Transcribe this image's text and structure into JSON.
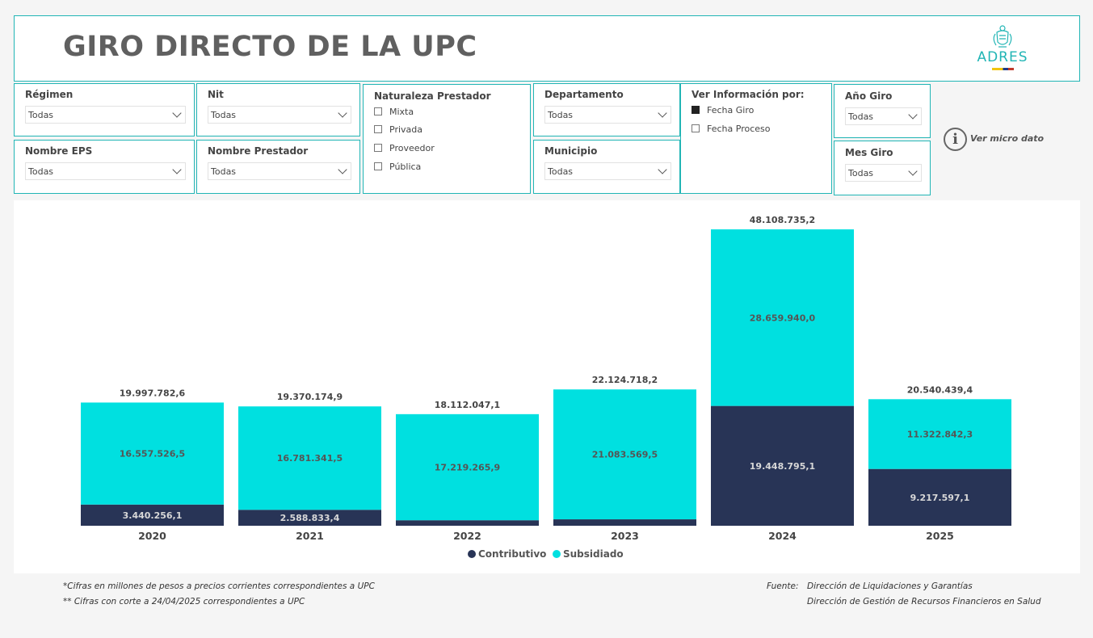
{
  "header": {
    "title": "GIRO DIRECTO DE LA UPC",
    "logo_text": "ADRES"
  },
  "filters": {
    "regimen": {
      "label": "Régimen",
      "value": "Todas"
    },
    "nit": {
      "label": "Nit",
      "value": "Todas"
    },
    "nombre_eps": {
      "label": "Nombre EPS",
      "value": "Todas"
    },
    "nombre_prestador": {
      "label": "Nombre Prestador",
      "value": "Todas"
    },
    "naturaleza": {
      "label": "Naturaleza Prestador",
      "options": [
        "Mixta",
        "Privada",
        "Proveedor",
        "Pública"
      ]
    },
    "departamento": {
      "label": "Departamento",
      "value": "Todas"
    },
    "municipio": {
      "label": "Municipio",
      "value": "Todas"
    },
    "ver_informacion": {
      "label": "Ver Información por:",
      "options": [
        "Fecha Giro",
        "Fecha Proceso"
      ],
      "selected": "Fecha Giro"
    },
    "anio_giro": {
      "label": "Año Giro",
      "value": "Todas"
    },
    "mes_giro": {
      "label": "Mes Giro",
      "value": "Todas"
    }
  },
  "micro_dato": {
    "label": "Ver micro dato",
    "icon": "info-icon"
  },
  "colors": {
    "contributivo": "#283456",
    "subsidiado": "#00e0e0",
    "accent": "#21b5b5"
  },
  "chart_data": {
    "type": "bar",
    "stacked": true,
    "categories": [
      "2020",
      "2021",
      "2022",
      "2023",
      "2024",
      "2025"
    ],
    "series": [
      {
        "name": "Contributivo",
        "values": [
          3440256.1,
          2588833.4,
          892781.2,
          1041148.7,
          19448795.1,
          9217597.1
        ],
        "labels": [
          "3.440.256,1",
          "2.588.833,4",
          "",
          "",
          "19.448.795,1",
          "9.217.597,1"
        ]
      },
      {
        "name": "Subsidiado",
        "values": [
          16557526.5,
          16781341.5,
          17219265.9,
          21083569.5,
          28659940.0,
          11322842.3
        ],
        "labels": [
          "16.557.526,5",
          "16.781.341,5",
          "17.219.265,9",
          "21.083.569,5",
          "28.659.940,0",
          "11.322.842,3"
        ]
      }
    ],
    "totals": [
      19997782.6,
      19370174.9,
      18112047.1,
      22124718.2,
      48108735.2,
      20540439.4
    ],
    "total_labels": [
      "19.997.782,6",
      "19.370.174,9",
      "18.112.047,1",
      "22.124.718,2",
      "48.108.735,2",
      "20.540.439,4"
    ],
    "legend_position": "bottom-center",
    "grid": false
  },
  "footer": {
    "note1": "*Cifras en millones de pesos a precios corrientes correspondientes a UPC",
    "note2": "** Cifras con corte a 24/04/2025 correspondientes a UPC",
    "source_label": "Fuente:",
    "source1": "Dirección de Liquidaciones y Garantías",
    "source2": "Dirección de Gestión de Recursos Financieros en Salud"
  }
}
